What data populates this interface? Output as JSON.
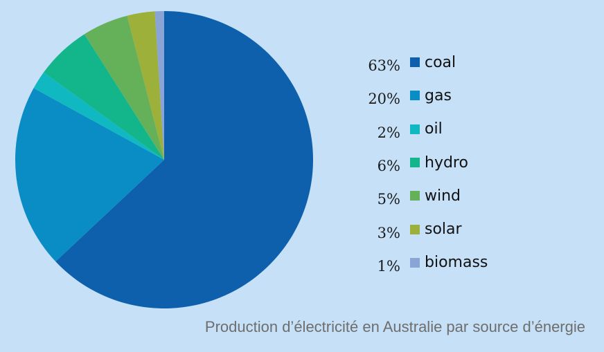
{
  "chart_data": {
    "type": "pie",
    "title": "",
    "caption": "Production d’électricité en Australie par source d’énergie",
    "categories": [
      "coal",
      "gas",
      "oil",
      "hydro",
      "wind",
      "solar",
      "biomass"
    ],
    "values": [
      63,
      20,
      2,
      6,
      5,
      3,
      1
    ],
    "value_labels": [
      "63%",
      "20%",
      "2%",
      "6%",
      "5%",
      "3%",
      "1%"
    ],
    "colors": [
      "#0e60ad",
      "#0a8cc4",
      "#10b8c2",
      "#13b58a",
      "#64b15a",
      "#9cb03a",
      "#8aa4d6"
    ],
    "legend_position": "right",
    "start": "top, clockwise"
  }
}
